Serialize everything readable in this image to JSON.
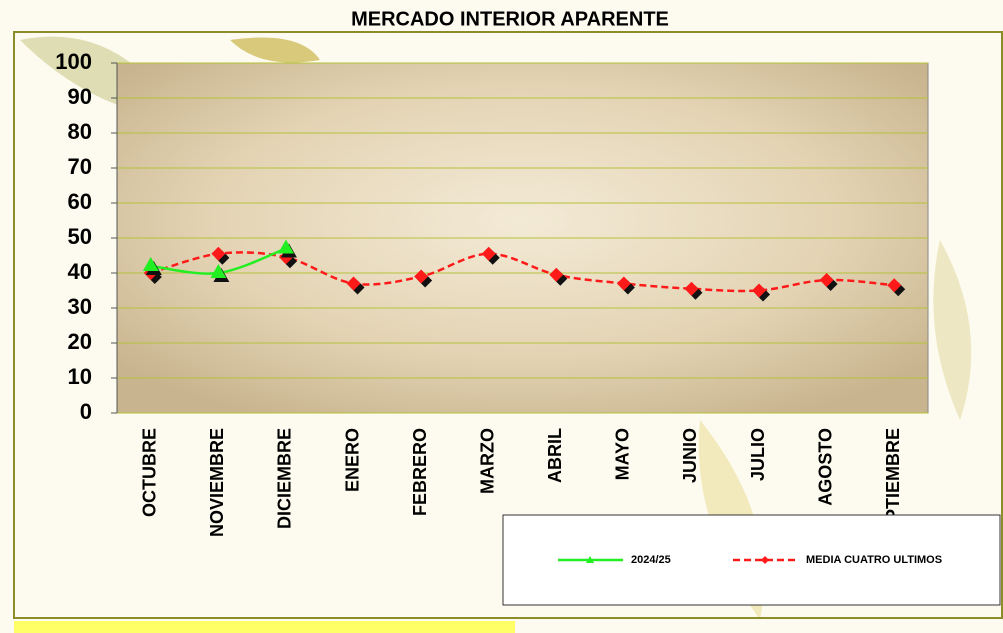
{
  "chart_data": {
    "type": "line",
    "title": "MERCADO INTERIOR APARENTE",
    "categories": [
      "OCTUBRE",
      "NOVIEMBRE",
      "DICIEMBRE",
      "ENERO",
      "FEBRERO",
      "MARZO",
      "ABRIL",
      "MAYO",
      "JUNIO",
      "JULIO",
      "AGOSTO",
      "SEPTIEMBRE"
    ],
    "series": [
      {
        "name": "2024/25",
        "color": "#22ee22",
        "values": [
          42,
          40,
          47,
          null,
          null,
          null,
          null,
          null,
          null,
          null,
          null,
          null
        ]
      },
      {
        "name": "MEDIA CUATRO ULTIMOS",
        "color": "#ff1a1a",
        "values": [
          40,
          45.5,
          44.5,
          37,
          39,
          45.5,
          39.5,
          37,
          35.5,
          35,
          38,
          36.5
        ]
      }
    ],
    "ylim": [
      0,
      100
    ],
    "yticks": [
      0,
      10,
      20,
      30,
      40,
      50,
      60,
      70,
      80,
      90,
      100
    ],
    "grid": true
  }
}
